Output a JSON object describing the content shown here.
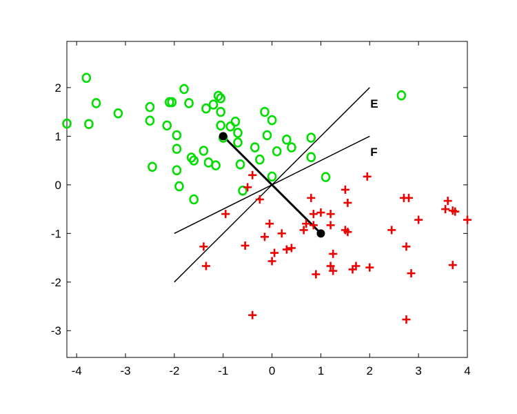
{
  "chart_data": {
    "type": "scatter",
    "title": "",
    "xlabel": "",
    "ylabel": "",
    "xlim": [
      -4.2,
      4.0
    ],
    "ylim": [
      -3.55,
      2.95
    ],
    "xticks": [
      -4,
      -3,
      -2,
      -1,
      0,
      1,
      2,
      3,
      4
    ],
    "yticks": [
      -3,
      -2,
      -1,
      0,
      1,
      2
    ],
    "grid": false,
    "legend": "none",
    "series": [
      {
        "marker": "circle",
        "color": "#00dd00",
        "points": [
          [
            -3.8,
            2.2
          ],
          [
            -3.6,
            1.68
          ],
          [
            -3.75,
            1.25
          ],
          [
            -3.15,
            1.47
          ],
          [
            -4.2,
            1.26
          ],
          [
            -2.5,
            1.6
          ],
          [
            -2.5,
            1.32
          ],
          [
            -2.45,
            0.37
          ],
          [
            -2.1,
            1.7
          ],
          [
            -2.05,
            1.7
          ],
          [
            -2.15,
            1.22
          ],
          [
            -1.95,
            1.02
          ],
          [
            -1.95,
            0.74
          ],
          [
            -1.95,
            0.3
          ],
          [
            -1.9,
            -0.03
          ],
          [
            -1.8,
            1.97
          ],
          [
            -1.7,
            1.68
          ],
          [
            -1.65,
            0.56
          ],
          [
            -1.6,
            0.5
          ],
          [
            -1.6,
            -0.3
          ],
          [
            -1.4,
            0.7
          ],
          [
            -1.35,
            1.57
          ],
          [
            -1.3,
            0.46
          ],
          [
            -1.2,
            1.65
          ],
          [
            -1.15,
            0.4
          ],
          [
            -1.1,
            1.83
          ],
          [
            -1.05,
            1.78
          ],
          [
            -1.05,
            1.5
          ],
          [
            -1.05,
            1.22
          ],
          [
            -1.0,
            0.97
          ],
          [
            -0.85,
            1.2
          ],
          [
            -0.75,
            1.3
          ],
          [
            -0.7,
            1.07
          ],
          [
            -0.7,
            0.87
          ],
          [
            -0.65,
            0.42
          ],
          [
            -0.6,
            -0.12
          ],
          [
            -0.35,
            0.77
          ],
          [
            -0.25,
            0.52
          ],
          [
            -0.15,
            1.5
          ],
          [
            -0.1,
            1.02
          ],
          [
            0.0,
            1.33
          ],
          [
            0.0,
            0.17
          ],
          [
            0.1,
            0.69
          ],
          [
            0.3,
            0.93
          ],
          [
            0.4,
            0.77
          ],
          [
            0.8,
            0.97
          ],
          [
            0.8,
            0.57
          ],
          [
            1.1,
            0.16
          ],
          [
            2.65,
            1.84
          ]
        ]
      },
      {
        "marker": "plus",
        "color": "#ee0000",
        "points": [
          [
            -0.4,
            0.2
          ],
          [
            -0.5,
            -0.05
          ],
          [
            -0.25,
            -0.3
          ],
          [
            -0.95,
            -0.6
          ],
          [
            -1.4,
            -1.27
          ],
          [
            -1.35,
            -1.67
          ],
          [
            -0.55,
            -1.25
          ],
          [
            -0.4,
            -2.68
          ],
          [
            -0.15,
            -1.07
          ],
          [
            -0.05,
            -0.8
          ],
          [
            0.0,
            -1.57
          ],
          [
            0.05,
            -1.4
          ],
          [
            0.2,
            -1.0
          ],
          [
            0.3,
            -1.33
          ],
          [
            0.4,
            -1.3
          ],
          [
            0.65,
            -0.93
          ],
          [
            0.7,
            -0.8
          ],
          [
            0.8,
            -0.27
          ],
          [
            0.85,
            -0.6
          ],
          [
            0.85,
            -0.83
          ],
          [
            0.9,
            -1.84
          ],
          [
            1.0,
            -0.57
          ],
          [
            1.2,
            -0.83
          ],
          [
            1.2,
            -0.6
          ],
          [
            1.2,
            -1.67
          ],
          [
            1.25,
            -1.77
          ],
          [
            1.25,
            -1.42
          ],
          [
            1.5,
            -0.1
          ],
          [
            1.5,
            -0.93
          ],
          [
            1.55,
            -0.97
          ],
          [
            1.55,
            -0.37
          ],
          [
            1.65,
            -1.74
          ],
          [
            1.72,
            -1.67
          ],
          [
            1.95,
            0.17
          ],
          [
            2.0,
            -1.7
          ],
          [
            2.45,
            -0.93
          ],
          [
            2.7,
            -0.27
          ],
          [
            2.75,
            -1.27
          ],
          [
            2.75,
            -2.77
          ],
          [
            2.8,
            -0.27
          ],
          [
            2.85,
            -1.82
          ],
          [
            3.0,
            -0.72
          ],
          [
            3.55,
            -0.5
          ],
          [
            3.6,
            -0.33
          ],
          [
            3.7,
            -0.53
          ],
          [
            3.75,
            -0.55
          ],
          [
            3.7,
            -1.65
          ],
          [
            4.0,
            -0.72
          ]
        ]
      }
    ],
    "lines": [
      {
        "name": "E",
        "from": [
          -2,
          -2
        ],
        "to": [
          2,
          2
        ],
        "width": 1.5
      },
      {
        "name": "F",
        "from": [
          -2,
          -1
        ],
        "to": [
          2,
          1
        ],
        "width": 1.5
      },
      {
        "name": "",
        "from": [
          -1,
          1
        ],
        "to": [
          1,
          -1
        ],
        "width": 3
      }
    ],
    "anchors": [
      [
        -1,
        1
      ],
      [
        1,
        -1
      ]
    ],
    "annotations": [
      {
        "text": "E",
        "x": 2.0,
        "y": 1.67
      },
      {
        "text": "F",
        "x": 2.0,
        "y": 0.68
      }
    ]
  }
}
